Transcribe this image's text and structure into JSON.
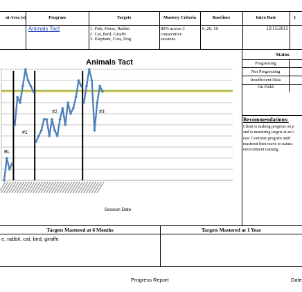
{
  "header": {
    "col_target_area": "nt Area (s)",
    "col_program": "Program",
    "col_targets": "Targets",
    "col_mastery": "Mastery Criteria",
    "col_baselines": "Baselines",
    "col_intro": "Intro Date",
    "col_last": "1"
  },
  "row": {
    "program": "Animals Tact",
    "targets": [
      "1. Fish, Horse, Rabbit",
      "2. Cat, Bird, Giraffe",
      "3. Elephant, Cow, Dog"
    ],
    "mastery": [
      "80% acorss 3",
      "consecutive",
      "sessions"
    ],
    "baselines": "0, 20, 10",
    "intro_date": "12/15/2015"
  },
  "status": {
    "title": "Status",
    "items": [
      "Progressing",
      "Not Progressing",
      "Insufficient Data",
      "On Hold"
    ]
  },
  "recommendations": {
    "title": "Recommendations:",
    "lines": [
      "Client is making progress on p",
      "and is mastering targets at an i",
      "rate.  Continue program until",
      "mastered then move to natura",
      "environment training."
    ]
  },
  "mastered": {
    "six_months_title": "Targets Mastered at 6 Months",
    "six_months_text": "e, rabbit, cat, bird, giraffe",
    "one_year_title": "Targets Mastered at 1 Year"
  },
  "footer": {
    "title": "Progress Report",
    "date_label": "Date"
  },
  "chart_data": {
    "type": "line",
    "title": "Animals Tact",
    "xlabel": "Session Date",
    "ylabel": "",
    "ylim": [
      0,
      100
    ],
    "grid": true,
    "phase_labels": [
      "BL",
      "#1",
      "#2",
      "#3"
    ],
    "phase_change_after_index": [
      3,
      11,
      29
    ],
    "criterion_line": 80,
    "line_colors": {
      "series": "#4f81bd",
      "criterion_green": "#9bbb59",
      "criterion_gold": "#f0c419"
    },
    "series": [
      {
        "values": [
          0,
          20,
          10,
          15,
          50,
          75,
          70,
          85,
          100,
          90,
          85,
          80,
          35,
          40,
          45,
          55,
          55,
          40,
          55,
          45,
          40,
          55,
          65,
          50,
          70,
          60,
          65,
          75,
          90,
          85,
          70,
          85,
          100,
          90,
          45,
          70,
          85,
          80
        ]
      }
    ]
  }
}
